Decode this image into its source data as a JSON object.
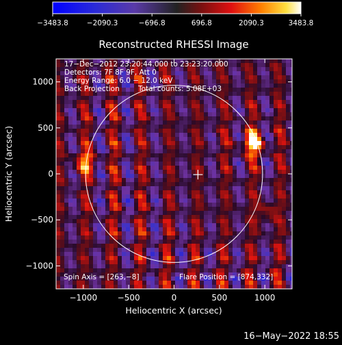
{
  "chart_data": {
    "type": "heatmap",
    "title": "Reconstructed RHESSI Image",
    "xlabel": "Heliocentric X (arcsec)",
    "ylabel": "Heliocentric Y (arcsec)",
    "xlim": [
      -1300,
      1300
    ],
    "ylim": [
      -1250,
      1250
    ],
    "x_ticks": [
      -1000,
      -500,
      0,
      500,
      1000
    ],
    "y_ticks": [
      -1000,
      -500,
      0,
      500,
      1000
    ],
    "x_tick_labels": [
      "−1000",
      "−500",
      "0",
      "500",
      "1000"
    ],
    "y_tick_labels": [
      "−1000",
      "−500",
      "0",
      "500",
      "1000"
    ],
    "colorbar": {
      "min": -3483.8,
      "max": 3483.8,
      "ticks": [
        -3483.8,
        -2090.3,
        -696.8,
        696.8,
        2090.3,
        3483.8
      ],
      "tick_labels": [
        "−3483.8",
        "−2090.3",
        "−696.8",
        "696.8",
        "2090.3",
        "3483.8"
      ]
    },
    "annotations": {
      "line1": "17−Dec−2012 23:20:44.000 to 23:23:20.000",
      "line2": "Detectors: 7F 8F 9F, Att 0",
      "line3": "Energy Range: 6.0 − 12.0 keV",
      "line4a": "Back Projection",
      "line4b": "Total counts: 5.08E+03",
      "spin_axis": "Spin Axis = [263,−8]",
      "flare_position": "Flare Position = [874,332]"
    },
    "solar_disk": {
      "center": [
        0,
        0
      ],
      "radius_arcsec": 975
    },
    "marker": {
      "x": 263,
      "y": -8
    },
    "hot_spots": [
      {
        "x": 874,
        "y": 332,
        "value": 3483.8
      },
      {
        "x": -990,
        "y": 120,
        "value": 3000
      },
      {
        "x": 1020,
        "y": -420,
        "value": 2600
      }
    ]
  },
  "footer_timestamp": "16−May−2022 18:55"
}
